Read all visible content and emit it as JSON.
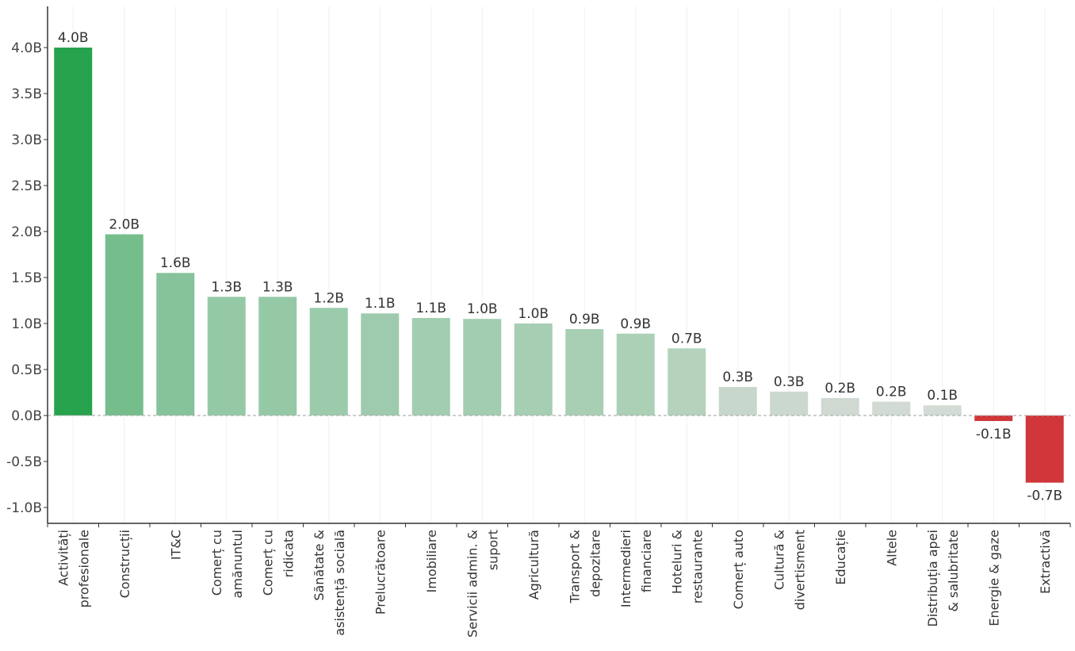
{
  "chart_data": {
    "type": "bar",
    "title": "",
    "xlabel": "",
    "ylabel": "",
    "ylim": [
      -1.18,
      4.5
    ],
    "yticks": [
      -1.0,
      -0.5,
      0.0,
      0.5,
      1.0,
      1.5,
      2.0,
      2.5,
      3.0,
      3.5,
      4.0
    ],
    "ytick_labels": [
      "-1.0B",
      "-0.5B",
      "0.0B",
      "0.5B",
      "1.0B",
      "1.5B",
      "2.0B",
      "2.5B",
      "3.0B",
      "3.5B",
      "4.0B"
    ],
    "grid": "vertical-light",
    "zero_line": "dashed",
    "categories": [
      [
        "Activități",
        "profesionale"
      ],
      [
        "Construcții"
      ],
      [
        "IT&C"
      ],
      [
        "Comerț cu",
        "amănuntul"
      ],
      [
        "Comerț cu",
        "ridicata"
      ],
      [
        "Sănătate &",
        "asistență socială"
      ],
      [
        "Prelucrătoare"
      ],
      [
        "Imobiliare"
      ],
      [
        "Servicii admin. &",
        "suport"
      ],
      [
        "Agricultură"
      ],
      [
        "Transport &",
        "depozitare"
      ],
      [
        "Intermedieri",
        "financiare"
      ],
      [
        "Hoteluri &",
        "restaurante"
      ],
      [
        "Comerț auto"
      ],
      [
        "Cultură &",
        "divertisment"
      ],
      [
        "Educație"
      ],
      [
        "Altele"
      ],
      [
        "Distribuția apei",
        "& salubritate"
      ],
      [
        "Energie & gaze"
      ],
      [
        "Extractivă"
      ]
    ],
    "values": [
      4.0,
      1.97,
      1.55,
      1.29,
      1.29,
      1.17,
      1.11,
      1.06,
      1.05,
      1.0,
      0.94,
      0.89,
      0.73,
      0.31,
      0.26,
      0.19,
      0.15,
      0.11,
      -0.06,
      -0.73
    ],
    "data_labels": [
      "4.0B",
      "2.0B",
      "1.6B",
      "1.3B",
      "1.3B",
      "1.2B",
      "1.1B",
      "1.1B",
      "1.0B",
      "1.0B",
      "0.9B",
      "0.9B",
      "0.7B",
      "0.3B",
      "0.3B",
      "0.2B",
      "0.2B",
      "0.1B",
      "-0.1B",
      "-0.7B"
    ],
    "colors": [
      "#27a24d",
      "#76bd8c",
      "#86c39b",
      "#95c9a6",
      "#95c9a6",
      "#9bcbab",
      "#9ecbad",
      "#a2cdb0",
      "#a2cdb0",
      "#a5ceb2",
      "#a8cfb4",
      "#abd0b6",
      "#b4d2bc",
      "#c8d7cc",
      "#cbd8ce",
      "#cfd9d1",
      "#d1dad3",
      "#d3dbd5",
      "#d0363a",
      "#d0363a"
    ]
  }
}
